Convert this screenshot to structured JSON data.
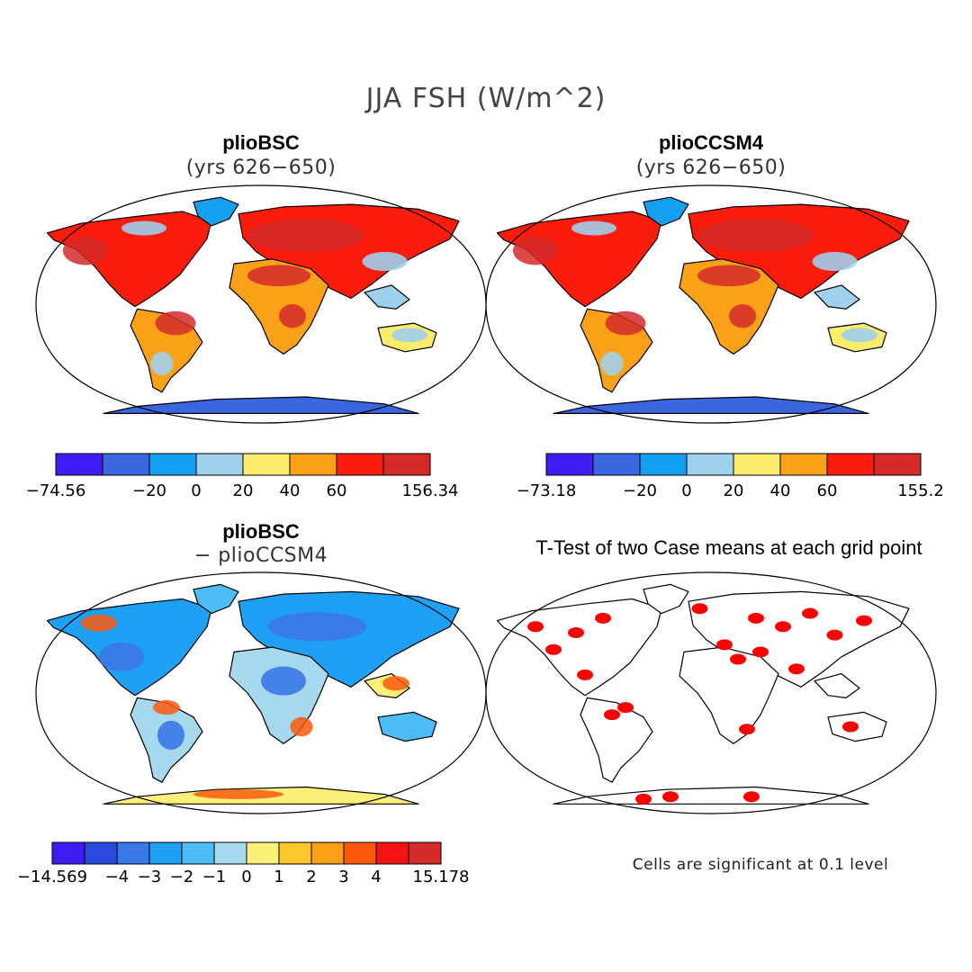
{
  "page_title": "JJA FSH (W/m^2)",
  "panels": [
    {
      "title": "plioBSC",
      "subtitle": "(yrs 626−650)"
    },
    {
      "title": "plioCCSM4",
      "subtitle": "(yrs 626−650)"
    },
    {
      "title": "plioBSC",
      "subtitle": "− plioCCSM4"
    },
    {
      "title": "T-Test of two Case means at each grid point",
      "subtitle": ""
    }
  ],
  "colorbars": [
    {
      "colors": [
        "#3f1cf4",
        "#3a66e0",
        "#14a0f0",
        "#9ecfeb",
        "#fcec6c",
        "#fba118",
        "#fb1c0c",
        "#d42a2a"
      ],
      "labels": [
        "−74.56",
        "−20",
        "0",
        "20",
        "40",
        "60",
        "156.34"
      ]
    },
    {
      "colors": [
        "#3f1cf4",
        "#3a66e0",
        "#14a0f0",
        "#9ecfeb",
        "#fcec6c",
        "#fba118",
        "#fb1c0c",
        "#d42a2a"
      ],
      "labels": [
        "−73.18",
        "−20",
        "0",
        "20",
        "40",
        "60",
        "155.2"
      ]
    },
    {
      "colors": [
        "#3f1cf4",
        "#2b4ae0",
        "#3a78e8",
        "#1ea0f5",
        "#4cbdf5",
        "#a6d8ee",
        "#fcf078",
        "#fcc82c",
        "#fba118",
        "#fb5a0c",
        "#f41414",
        "#d42a2a"
      ],
      "labels": [
        "−14.569",
        "−4",
        "−3",
        "−2",
        "−1",
        "0",
        "1",
        "2",
        "3",
        "4",
        "15.178"
      ]
    }
  ],
  "note": "Cells are significant at 0.1 level",
  "chart_data": [
    {
      "type": "heatmap",
      "title": "plioBSC (yrs 626−650)",
      "variable": "JJA FSH (W/m^2)",
      "levels": [
        -74.56,
        -20,
        0,
        20,
        40,
        60,
        156.34
      ],
      "range": [
        -74.56,
        156.34
      ]
    },
    {
      "type": "heatmap",
      "title": "plioCCSM4 (yrs 626−650)",
      "variable": "JJA FSH (W/m^2)",
      "levels": [
        -73.18,
        -20,
        0,
        20,
        40,
        60,
        155.2
      ],
      "range": [
        -73.18,
        155.2
      ]
    },
    {
      "type": "heatmap",
      "title": "plioBSC − plioCCSM4",
      "variable": "JJA FSH (W/m^2)",
      "levels": [
        -14.569,
        -4,
        -3,
        -2,
        -1,
        0,
        1,
        2,
        3,
        4,
        15.178
      ],
      "range": [
        -14.569,
        15.178
      ]
    },
    {
      "type": "heatmap",
      "title": "T-Test of two Case means at each grid point",
      "significance_level": 0.1,
      "note": "Cells are significant at 0.1 level"
    }
  ]
}
